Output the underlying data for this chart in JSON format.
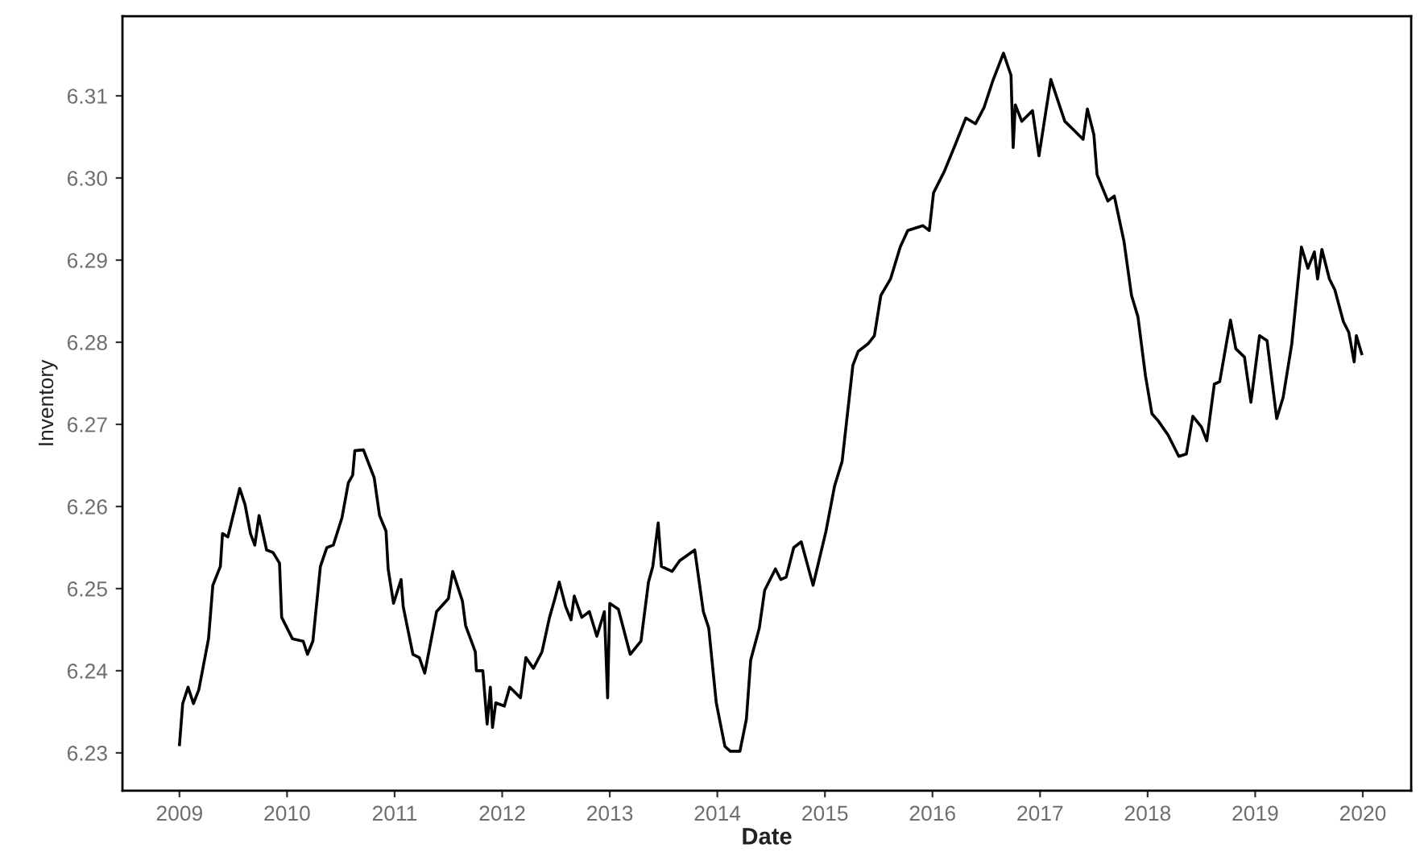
{
  "chart_data": {
    "type": "line",
    "xlabel": "Date",
    "ylabel": "Inventory",
    "x": [
      2009.0,
      2009.03,
      2009.08,
      2009.13,
      2009.18,
      2009.27,
      2009.31,
      2009.38,
      2009.4,
      2009.45,
      2009.56,
      2009.61,
      2009.66,
      2009.7,
      2009.74,
      2009.81,
      2009.87,
      2009.93,
      2009.95,
      2010.05,
      2010.15,
      2010.19,
      2010.24,
      2010.31,
      2010.37,
      2010.43,
      2010.51,
      2010.57,
      2010.61,
      2010.63,
      2010.71,
      2010.81,
      2010.86,
      2010.92,
      2010.94,
      2010.99,
      2011.06,
      2011.08,
      2011.17,
      2011.23,
      2011.28,
      2011.39,
      2011.5,
      2011.54,
      2011.63,
      2011.66,
      2011.75,
      2011.76,
      2011.82,
      2011.86,
      2011.89,
      2011.91,
      2011.94,
      2012.02,
      2012.07,
      2012.17,
      2012.22,
      2012.29,
      2012.37,
      2012.44,
      2012.49,
      2012.53,
      2012.59,
      2012.64,
      2012.67,
      2012.74,
      2012.81,
      2012.88,
      2012.95,
      2012.98,
      2013.0,
      2013.08,
      2013.19,
      2013.29,
      2013.36,
      2013.4,
      2013.45,
      2013.48,
      2013.58,
      2013.65,
      2013.79,
      2013.87,
      2013.92,
      2013.99,
      2014.07,
      2014.12,
      2014.21,
      2014.27,
      2014.31,
      2014.39,
      2014.44,
      2014.54,
      2014.59,
      2014.64,
      2014.71,
      2014.78,
      2014.89,
      2015.01,
      2015.09,
      2015.16,
      2015.26,
      2015.31,
      2015.4,
      2015.46,
      2015.52,
      2015.61,
      2015.7,
      2015.77,
      2015.91,
      2015.97,
      2016.01,
      2016.11,
      2016.21,
      2016.31,
      2016.4,
      2016.48,
      2016.56,
      2016.66,
      2016.73,
      2016.75,
      2016.77,
      2016.83,
      2016.93,
      2016.99,
      2017.1,
      2017.23,
      2017.3,
      2017.4,
      2017.44,
      2017.5,
      2017.53,
      2017.63,
      2017.69,
      2017.78,
      2017.85,
      2017.91,
      2017.98,
      2018.04,
      2018.1,
      2018.19,
      2018.29,
      2018.36,
      2018.42,
      2018.5,
      2018.55,
      2018.62,
      2018.67,
      2018.77,
      2018.82,
      2018.9,
      2018.96,
      2019.04,
      2019.11,
      2019.2,
      2019.26,
      2019.34,
      2019.43,
      2019.49,
      2019.55,
      2019.58,
      2019.62,
      2019.69,
      2019.74,
      2019.82,
      2019.87,
      2019.92,
      2019.94,
      2019.99
    ],
    "series": [
      {
        "color": "#000000",
        "values": [
          6.231,
          6.236,
          6.238,
          6.236,
          6.2377,
          6.2439,
          6.2504,
          6.2527,
          6.2567,
          6.2563,
          6.2622,
          6.2602,
          6.2567,
          6.2553,
          6.2589,
          6.2547,
          6.2544,
          6.2531,
          6.2465,
          6.2439,
          6.2436,
          6.242,
          6.2436,
          6.2527,
          6.255,
          6.2553,
          6.2586,
          6.2629,
          6.2638,
          6.2668,
          6.2669,
          6.2635,
          6.2589,
          6.257,
          6.2524,
          6.2482,
          6.2511,
          6.2478,
          6.242,
          6.2416,
          6.2397,
          6.2472,
          6.2488,
          6.2521,
          6.2485,
          6.2455,
          6.2423,
          6.24,
          6.24,
          6.2335,
          6.238,
          6.2331,
          6.2361,
          6.2357,
          6.238,
          6.2367,
          6.2416,
          6.2403,
          6.2423,
          6.2465,
          6.2488,
          6.2508,
          6.2478,
          6.2462,
          6.2491,
          6.2465,
          6.2472,
          6.2442,
          6.2472,
          6.2367,
          6.2482,
          6.2475,
          6.242,
          6.2436,
          6.2508,
          6.2527,
          6.258,
          6.2527,
          6.2521,
          6.2534,
          6.2547,
          6.2472,
          6.2452,
          6.2361,
          6.2308,
          6.2302,
          6.2302,
          6.2341,
          6.2413,
          6.2452,
          6.2498,
          6.2524,
          6.2511,
          6.2514,
          6.255,
          6.2557,
          6.2504,
          6.257,
          6.2625,
          6.2655,
          6.2772,
          6.2789,
          6.2798,
          6.2808,
          6.2857,
          6.2877,
          6.2916,
          6.2936,
          6.2942,
          6.2936,
          6.2982,
          6.3008,
          6.304,
          6.3073,
          6.3066,
          6.3086,
          6.3118,
          6.3152,
          6.3125,
          6.3037,
          6.3089,
          6.3069,
          6.3082,
          6.3027,
          6.312,
          6.3069,
          6.306,
          6.3047,
          6.3084,
          6.3053,
          6.3004,
          6.2972,
          6.2978,
          6.2923,
          6.2857,
          6.2831,
          6.2759,
          6.2713,
          6.2704,
          6.2687,
          6.2661,
          6.2664,
          6.271,
          6.2697,
          6.268,
          6.2749,
          6.2752,
          6.2827,
          6.2792,
          6.2782,
          6.2727,
          6.2808,
          6.2802,
          6.2707,
          6.2733,
          6.2798,
          6.2916,
          6.289,
          6.291,
          6.2877,
          6.2913,
          6.2877,
          6.2864,
          6.2825,
          6.2812,
          6.2776,
          6.2808,
          6.2786
        ]
      }
    ],
    "xlim": [
      2008.47,
      2020.45
    ],
    "ylim": [
      6.2254,
      6.3197
    ],
    "xticks": [
      2009,
      2010,
      2011,
      2012,
      2013,
      2014,
      2015,
      2016,
      2017,
      2018,
      2019,
      2020
    ],
    "yticks": [
      {
        "value": 6.23,
        "label": "6.23"
      },
      {
        "value": 6.24,
        "label": "6.24"
      },
      {
        "value": 6.25,
        "label": "6.25"
      },
      {
        "value": 6.26,
        "label": "6.26"
      },
      {
        "value": 6.27,
        "label": "6.27"
      },
      {
        "value": 6.28,
        "label": "6.28"
      },
      {
        "value": 6.29,
        "label": "6.29"
      },
      {
        "value": 6.3,
        "label": "6.30"
      },
      {
        "value": 6.31,
        "label": "6.31"
      }
    ],
    "grid": false,
    "legend": false,
    "marker": "none",
    "line_style": "solid"
  }
}
